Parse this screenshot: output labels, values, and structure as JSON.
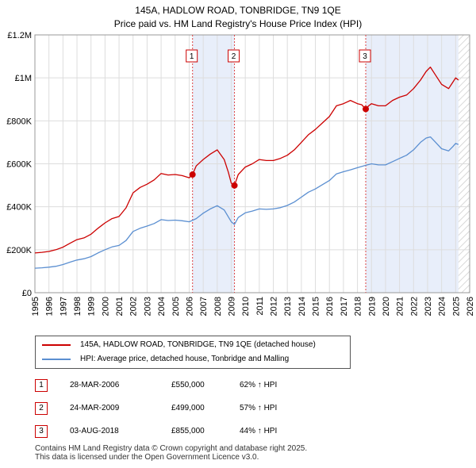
{
  "chart_data": {
    "type": "line",
    "title": "145A, HADLOW ROAD, TONBRIDGE, TN9 1QE",
    "subtitle": "Price paid vs. HM Land Registry's House Price Index (HPI)",
    "xlabel": "",
    "ylabel": "",
    "xlim": [
      1995,
      2026
    ],
    "ylim": [
      0,
      1200000
    ],
    "grid": true,
    "y_ticks": [
      {
        "value": 0,
        "label": "£0"
      },
      {
        "value": 200000,
        "label": "£200K"
      },
      {
        "value": 400000,
        "label": "£400K"
      },
      {
        "value": 600000,
        "label": "£600K"
      },
      {
        "value": 800000,
        "label": "£800K"
      },
      {
        "value": 1000000,
        "label": "£1M"
      },
      {
        "value": 1200000,
        "label": "£1.2M"
      }
    ],
    "x_ticks": [
      "1995",
      "1996",
      "1997",
      "1998",
      "1999",
      "2000",
      "2001",
      "2002",
      "2003",
      "2004",
      "2005",
      "2006",
      "2007",
      "2008",
      "2009",
      "2010",
      "2011",
      "2012",
      "2013",
      "2014",
      "2015",
      "2016",
      "2017",
      "2018",
      "2019",
      "2020",
      "2021",
      "2022",
      "2023",
      "2024",
      "2025",
      "2026"
    ],
    "series": [
      {
        "name": "145A, HADLOW ROAD, TONBRIDGE, TN9 1QE (detached house)",
        "color": "#cc0000",
        "x": [
          1995.0,
          1995.5,
          1996.0,
          1996.5,
          1997.0,
          1997.5,
          1998.0,
          1998.5,
          1999.0,
          1999.5,
          2000.0,
          2000.5,
          2001.0,
          2001.5,
          2002.0,
          2002.5,
          2003.0,
          2003.5,
          2004.0,
          2004.5,
          2005.0,
          2005.5,
          2006.0,
          2006.24,
          2006.5,
          2007.0,
          2007.5,
          2008.0,
          2008.5,
          2008.8,
          2009.0,
          2009.23,
          2009.5,
          2010.0,
          2010.5,
          2011.0,
          2011.5,
          2012.0,
          2012.5,
          2013.0,
          2013.5,
          2014.0,
          2014.5,
          2015.0,
          2015.5,
          2016.0,
          2016.5,
          2017.0,
          2017.5,
          2018.0,
          2018.3,
          2018.59,
          2018.8,
          2019.0,
          2019.5,
          2020.0,
          2020.5,
          2021.0,
          2021.5,
          2022.0,
          2022.5,
          2022.9,
          2023.2,
          2023.5,
          2024.0,
          2024.5,
          2024.8,
          2025.0,
          2025.2
        ],
        "values": [
          185000,
          188000,
          192000,
          200000,
          212000,
          230000,
          247000,
          255000,
          272000,
          300000,
          325000,
          345000,
          355000,
          395000,
          465000,
          490000,
          505000,
          525000,
          555000,
          548000,
          550000,
          545000,
          535000,
          550000,
          590000,
          620000,
          645000,
          665000,
          620000,
          560000,
          510000,
          499000,
          550000,
          585000,
          600000,
          620000,
          615000,
          615000,
          625000,
          640000,
          665000,
          700000,
          735000,
          760000,
          790000,
          820000,
          870000,
          880000,
          895000,
          880000,
          875000,
          855000,
          870000,
          880000,
          870000,
          870000,
          895000,
          910000,
          920000,
          950000,
          990000,
          1030000,
          1050000,
          1020000,
          970000,
          950000,
          980000,
          1000000,
          990000
        ]
      },
      {
        "name": "HPI: Average price, detached house, Tonbridge and Malling",
        "color": "#5b8fd1",
        "x": [
          1995.0,
          1995.5,
          1996.0,
          1996.5,
          1997.0,
          1997.5,
          1998.0,
          1998.5,
          1999.0,
          1999.5,
          2000.0,
          2000.5,
          2001.0,
          2001.5,
          2002.0,
          2002.5,
          2003.0,
          2003.5,
          2004.0,
          2004.5,
          2005.0,
          2005.5,
          2006.0,
          2006.5,
          2007.0,
          2007.5,
          2008.0,
          2008.5,
          2009.0,
          2009.23,
          2009.5,
          2010.0,
          2010.5,
          2011.0,
          2011.5,
          2012.0,
          2012.5,
          2013.0,
          2013.5,
          2014.0,
          2014.5,
          2015.0,
          2015.5,
          2016.0,
          2016.5,
          2017.0,
          2017.5,
          2018.0,
          2018.59,
          2019.0,
          2019.5,
          2020.0,
          2020.5,
          2021.0,
          2021.5,
          2022.0,
          2022.5,
          2022.9,
          2023.2,
          2023.5,
          2024.0,
          2024.5,
          2024.8,
          2025.0,
          2025.2
        ],
        "values": [
          114000,
          116000,
          119000,
          123000,
          131000,
          142000,
          152000,
          158000,
          168000,
          185000,
          200000,
          213000,
          220000,
          243000,
          285000,
          300000,
          310000,
          322000,
          340000,
          336000,
          338000,
          335000,
          330000,
          345000,
          370000,
          390000,
          405000,
          385000,
          330000,
          318000,
          350000,
          372000,
          380000,
          390000,
          388000,
          390000,
          396000,
          406000,
          422000,
          445000,
          468000,
          483000,
          503000,
          522000,
          553000,
          563000,
          572000,
          582000,
          593000,
          600000,
          595000,
          595000,
          610000,
          625000,
          640000,
          665000,
          700000,
          720000,
          725000,
          705000,
          670000,
          660000,
          680000,
          695000,
          690000
        ]
      }
    ],
    "transactions": [
      {
        "label": "1",
        "date": "28-MAR-2006",
        "x": 2006.24,
        "price": "£550,000",
        "value": 550000,
        "hpi": "62% ↑ HPI"
      },
      {
        "label": "2",
        "date": "24-MAR-2009",
        "x": 2009.23,
        "price": "£499,000",
        "value": 499000,
        "hpi": "57% ↑ HPI"
      },
      {
        "label": "3",
        "date": "03-AUG-2018",
        "x": 2018.59,
        "price": "£855,000",
        "value": 855000,
        "hpi": "44% ↑ HPI"
      }
    ],
    "footer": [
      "Contains HM Land Registry data © Crown copyright and database right 2025.",
      "This data is licensed under the Open Government Licence v3.0."
    ]
  }
}
